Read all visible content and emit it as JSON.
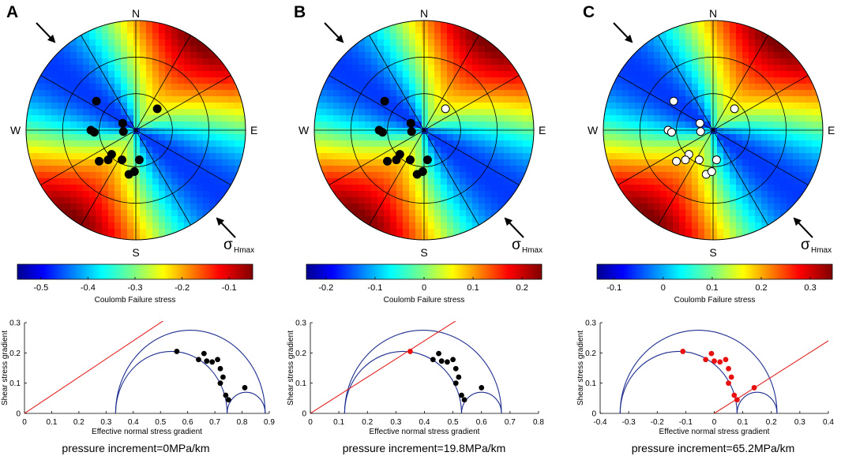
{
  "colors": {
    "circle_line": "#1f2f8f",
    "fit_line": "#e02020",
    "point_black": "#000000",
    "point_red": "#e81010",
    "point_white": "#ffffff"
  },
  "panels": [
    {
      "label": "A",
      "compass": {
        "n": "N",
        "s": "S",
        "e": "E",
        "w": "W"
      },
      "shmax_symbol": "σ",
      "shmax_sub": "Hmax",
      "pole_fill": "black",
      "colorbar": {
        "label": "Coulomb Failure stress",
        "min": -0.55,
        "max": -0.05,
        "ticks": [
          -0.5,
          -0.4,
          -0.3,
          -0.2,
          -0.1
        ],
        "tick_labels": [
          "-0.5",
          "-0.4",
          "-0.3",
          "-0.2",
          "-0.1"
        ]
      },
      "caption": "pressure increment=0MPa/km"
    },
    {
      "label": "B",
      "compass": {
        "n": "N",
        "s": "S",
        "e": "E",
        "w": "W"
      },
      "shmax_symbol": "σ",
      "shmax_sub": "Hmax",
      "pole_fill": "black_one_white",
      "colorbar": {
        "label": "Coulomb Failure stress",
        "min": -0.24,
        "max": 0.24,
        "ticks": [
          -0.2,
          -0.1,
          0,
          0.1,
          0.2
        ],
        "tick_labels": [
          "-0.2",
          "-0.1",
          "0",
          "0.1",
          "0.2"
        ]
      },
      "caption": "pressure increment=19.8MPa/km"
    },
    {
      "label": "C",
      "compass": {
        "n": "N",
        "s": "S",
        "e": "E",
        "w": "W"
      },
      "shmax_symbol": "σ",
      "shmax_sub": "Hmax",
      "pole_fill": "white",
      "colorbar": {
        "label": "Coulomb Failure stress",
        "min": -0.135,
        "max": 0.345,
        "ticks": [
          -0.1,
          0,
          0.1,
          0.2,
          0.3
        ],
        "tick_labels": [
          "-0.1",
          "0",
          "0.1",
          "0.2",
          "0.3"
        ]
      },
      "caption": "pressure increment=65.2MPa/km"
    }
  ],
  "stereonet_poles": [
    {
      "dx": -0.57,
      "dy": -0.42
    },
    {
      "dx": 0.31,
      "dy": -0.31
    },
    {
      "dx": -0.19,
      "dy": -0.1
    },
    {
      "dx": -0.65,
      "dy": 0.0
    },
    {
      "dx": -0.6,
      "dy": 0.03
    },
    {
      "dx": -0.18,
      "dy": 0.02
    },
    {
      "dx": -0.35,
      "dy": 0.35
    },
    {
      "dx": -0.4,
      "dy": 0.43
    },
    {
      "dx": -0.53,
      "dy": 0.45
    },
    {
      "dx": -0.2,
      "dy": 0.43
    },
    {
      "dx": 0.05,
      "dy": 0.43
    },
    {
      "dx": -0.1,
      "dy": 0.64
    },
    {
      "dx": -0.02,
      "dy": 0.6
    }
  ],
  "chart_data": [
    {
      "type": "scatter",
      "subtype": "mohr_circle",
      "panel": "A",
      "xlabel": "Effective normal stress gradient",
      "ylabel": "Shear stress gradient",
      "xlim": [
        0,
        0.9
      ],
      "ylim": [
        0,
        0.3
      ],
      "xticks": [
        0,
        0.1,
        0.2,
        0.3,
        0.4,
        0.5,
        0.6,
        0.7,
        0.8,
        0.9
      ],
      "xtick_labels": [
        "0",
        "0.1",
        "0.2",
        "0.3",
        "0.4",
        "0.5",
        "0.6",
        "0.7",
        "0.8",
        "0.9"
      ],
      "yticks": [
        0,
        0.1,
        0.2,
        0.3
      ],
      "ytick_labels": [
        "0",
        "0.1",
        "0.2",
        "0.3"
      ],
      "sigma3": 0.335,
      "sigma2": 0.745,
      "sigma1": 0.885,
      "friction_line": {
        "x0": 0,
        "slope": 0.6
      },
      "point_color": "black",
      "points": [
        {
          "x": 0.56,
          "y": 0.205
        },
        {
          "x": 0.66,
          "y": 0.198
        },
        {
          "x": 0.64,
          "y": 0.178
        },
        {
          "x": 0.67,
          "y": 0.173
        },
        {
          "x": 0.69,
          "y": 0.17
        },
        {
          "x": 0.71,
          "y": 0.178
        },
        {
          "x": 0.72,
          "y": 0.148
        },
        {
          "x": 0.73,
          "y": 0.12
        },
        {
          "x": 0.72,
          "y": 0.1
        },
        {
          "x": 0.74,
          "y": 0.06
        },
        {
          "x": 0.75,
          "y": 0.045
        },
        {
          "x": 0.81,
          "y": 0.085
        }
      ]
    },
    {
      "type": "scatter",
      "subtype": "mohr_circle",
      "panel": "B",
      "xlabel": "Effective normal stress gradient",
      "ylabel": "Shear stress gradient",
      "xlim": [
        0,
        0.8
      ],
      "ylim": [
        0,
        0.3
      ],
      "xticks": [
        0,
        0.1,
        0.2,
        0.3,
        0.4,
        0.5,
        0.6,
        0.7,
        0.8
      ],
      "xtick_labels": [
        "0",
        "0.1",
        "0.2",
        "0.3",
        "0.4",
        "0.5",
        "0.6",
        "0.7",
        "0.8"
      ],
      "yticks": [
        0,
        0.1,
        0.2,
        0.3
      ],
      "ytick_labels": [
        "0",
        "0.1",
        "0.2",
        "0.3"
      ],
      "sigma3": 0.12,
      "sigma2": 0.53,
      "sigma1": 0.67,
      "friction_line": {
        "x0": 0,
        "slope": 0.6
      },
      "point_color": "mixed",
      "points": [
        {
          "x": 0.35,
          "y": 0.205,
          "c": "red"
        },
        {
          "x": 0.45,
          "y": 0.198
        },
        {
          "x": 0.43,
          "y": 0.178
        },
        {
          "x": 0.46,
          "y": 0.173
        },
        {
          "x": 0.48,
          "y": 0.17
        },
        {
          "x": 0.5,
          "y": 0.178
        },
        {
          "x": 0.51,
          "y": 0.148
        },
        {
          "x": 0.52,
          "y": 0.12
        },
        {
          "x": 0.51,
          "y": 0.1
        },
        {
          "x": 0.53,
          "y": 0.06
        },
        {
          "x": 0.54,
          "y": 0.045
        },
        {
          "x": 0.6,
          "y": 0.085
        }
      ]
    },
    {
      "type": "scatter",
      "subtype": "mohr_circle",
      "panel": "C",
      "xlabel": "Effective normal stress gradient",
      "ylabel": "Shear stress gradient",
      "xlim": [
        -0.4,
        0.4
      ],
      "ylim": [
        0,
        0.3
      ],
      "xticks": [
        -0.4,
        -0.3,
        -0.2,
        -0.1,
        0,
        0.1,
        0.2,
        0.3,
        0.4
      ],
      "xtick_labels": [
        "-0.4",
        "-0.3",
        "-0.2",
        "-0.1",
        "0",
        "0.1",
        "0.2",
        "0.3",
        "0.4"
      ],
      "yticks": [
        0,
        0.1,
        0.2,
        0.3
      ],
      "ytick_labels": [
        "0",
        "0.1",
        "0.2",
        "0.3"
      ],
      "sigma3": -0.33,
      "sigma2": 0.08,
      "sigma1": 0.22,
      "friction_line": {
        "x0": 0,
        "slope": 0.6
      },
      "point_color": "red",
      "points": [
        {
          "x": -0.11,
          "y": 0.205
        },
        {
          "x": -0.01,
          "y": 0.198
        },
        {
          "x": -0.03,
          "y": 0.178
        },
        {
          "x": 0.0,
          "y": 0.173
        },
        {
          "x": 0.02,
          "y": 0.17
        },
        {
          "x": 0.04,
          "y": 0.178
        },
        {
          "x": 0.05,
          "y": 0.148
        },
        {
          "x": 0.06,
          "y": 0.12
        },
        {
          "x": 0.05,
          "y": 0.1
        },
        {
          "x": 0.07,
          "y": 0.06
        },
        {
          "x": 0.08,
          "y": 0.045
        },
        {
          "x": 0.14,
          "y": 0.085
        }
      ]
    }
  ]
}
